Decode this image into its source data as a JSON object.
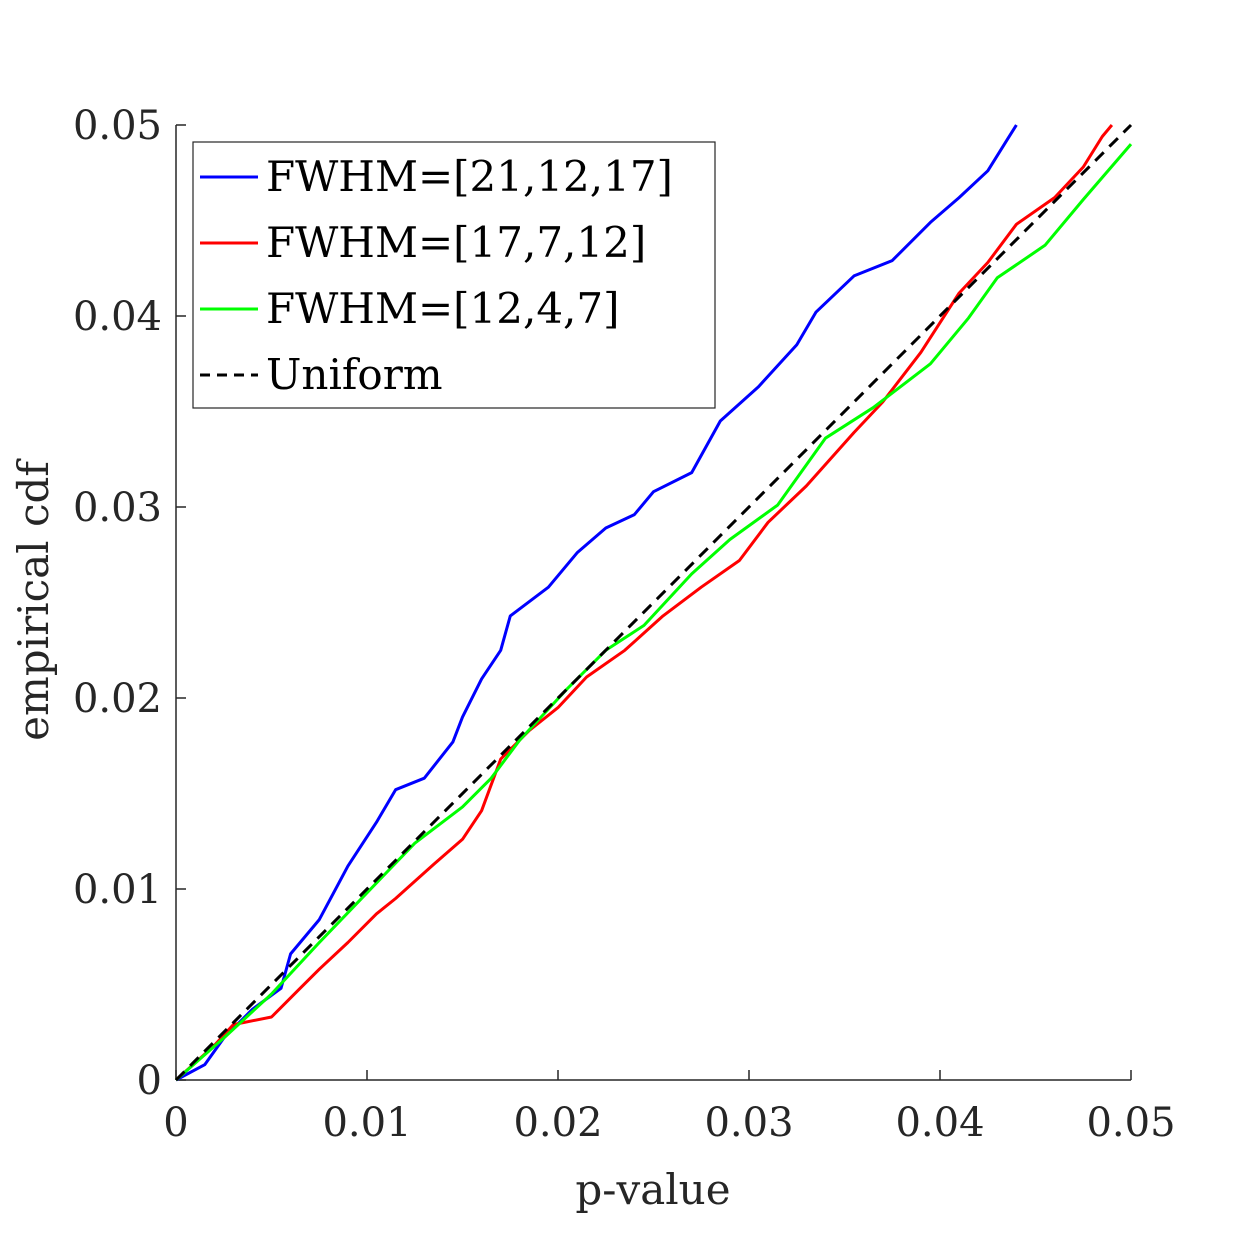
{
  "chart_data": {
    "type": "line",
    "title": "",
    "xlabel": "p-value",
    "ylabel": "empirical cdf",
    "xlim": [
      0,
      0.05
    ],
    "ylim": [
      0,
      0.05
    ],
    "xticks": [
      0,
      0.01,
      0.02,
      0.03,
      0.04,
      0.05
    ],
    "xtick_labels": [
      "0",
      "0.01",
      "0.02",
      "0.03",
      "0.04",
      "0.05"
    ],
    "yticks": [
      0,
      0.01,
      0.02,
      0.03,
      0.04,
      0.05
    ],
    "ytick_labels": [
      "0",
      "0.01",
      "0.02",
      "0.03",
      "0.04",
      "0.05"
    ],
    "grid": false,
    "legend_position": "top-left",
    "axis_color": "#262626",
    "series": [
      {
        "name": "FWHM=[21,12,17]",
        "color": "#0000ff",
        "dash": "solid",
        "points": [
          [
            0,
            0
          ],
          [
            0.0015,
            0.0008
          ],
          [
            0.0025,
            0.0022
          ],
          [
            0.004,
            0.0037
          ],
          [
            0.0055,
            0.0048
          ],
          [
            0.006,
            0.0066
          ],
          [
            0.0075,
            0.0084
          ],
          [
            0.009,
            0.0112
          ],
          [
            0.0105,
            0.0135
          ],
          [
            0.0115,
            0.0152
          ],
          [
            0.013,
            0.0158
          ],
          [
            0.0145,
            0.0177
          ],
          [
            0.015,
            0.019
          ],
          [
            0.016,
            0.021
          ],
          [
            0.017,
            0.0225
          ],
          [
            0.0175,
            0.0243
          ],
          [
            0.0195,
            0.0258
          ],
          [
            0.021,
            0.0276
          ],
          [
            0.0225,
            0.0289
          ],
          [
            0.024,
            0.0296
          ],
          [
            0.025,
            0.0308
          ],
          [
            0.027,
            0.0318
          ],
          [
            0.0285,
            0.0345
          ],
          [
            0.0305,
            0.0363
          ],
          [
            0.0315,
            0.0374
          ],
          [
            0.0325,
            0.0385
          ],
          [
            0.0335,
            0.0402
          ],
          [
            0.0355,
            0.0421
          ],
          [
            0.0375,
            0.0429
          ],
          [
            0.0395,
            0.0449
          ],
          [
            0.041,
            0.0462
          ],
          [
            0.0425,
            0.0476
          ],
          [
            0.0435,
            0.0492
          ],
          [
            0.044,
            0.05
          ]
        ]
      },
      {
        "name": "FWHM=[17,7,12]",
        "color": "#ff0000",
        "dash": "solid",
        "points": [
          [
            0,
            0
          ],
          [
            0.002,
            0.0018
          ],
          [
            0.003,
            0.0029
          ],
          [
            0.005,
            0.0033
          ],
          [
            0.0065,
            0.0048
          ],
          [
            0.0075,
            0.0058
          ],
          [
            0.009,
            0.0072
          ],
          [
            0.0105,
            0.0087
          ],
          [
            0.0115,
            0.0095
          ],
          [
            0.0135,
            0.0113
          ],
          [
            0.015,
            0.0126
          ],
          [
            0.016,
            0.0141
          ],
          [
            0.017,
            0.0168
          ],
          [
            0.0185,
            0.0183
          ],
          [
            0.02,
            0.0195
          ],
          [
            0.0215,
            0.0211
          ],
          [
            0.0235,
            0.0225
          ],
          [
            0.0255,
            0.0243
          ],
          [
            0.0275,
            0.0258
          ],
          [
            0.0295,
            0.0272
          ],
          [
            0.031,
            0.0292
          ],
          [
            0.033,
            0.0311
          ],
          [
            0.0355,
            0.0339
          ],
          [
            0.037,
            0.0355
          ],
          [
            0.039,
            0.0381
          ],
          [
            0.041,
            0.0412
          ],
          [
            0.0425,
            0.0428
          ],
          [
            0.044,
            0.0448
          ],
          [
            0.046,
            0.0462
          ],
          [
            0.0475,
            0.0478
          ],
          [
            0.0485,
            0.0494
          ],
          [
            0.049,
            0.05
          ]
        ]
      },
      {
        "name": "FWHM=[12,4,7]",
        "color": "#00ff00",
        "dash": "solid",
        "points": [
          [
            0,
            0
          ],
          [
            0.0025,
            0.0022
          ],
          [
            0.005,
            0.0045
          ],
          [
            0.0075,
            0.0072
          ],
          [
            0.01,
            0.0098
          ],
          [
            0.0125,
            0.0124
          ],
          [
            0.015,
            0.0143
          ],
          [
            0.0165,
            0.0158
          ],
          [
            0.018,
            0.0178
          ],
          [
            0.0205,
            0.0205
          ],
          [
            0.0225,
            0.0225
          ],
          [
            0.0245,
            0.0238
          ],
          [
            0.027,
            0.0265
          ],
          [
            0.029,
            0.0283
          ],
          [
            0.0315,
            0.0301
          ],
          [
            0.034,
            0.0336
          ],
          [
            0.0365,
            0.0352
          ],
          [
            0.0395,
            0.0375
          ],
          [
            0.0415,
            0.0399
          ],
          [
            0.043,
            0.042
          ],
          [
            0.0455,
            0.0437
          ],
          [
            0.0475,
            0.0461
          ],
          [
            0.05,
            0.049
          ]
        ]
      },
      {
        "name": "Uniform",
        "color": "#000000",
        "dash": "dashed",
        "points": [
          [
            0,
            0
          ],
          [
            0.05,
            0.05
          ]
        ]
      }
    ]
  }
}
